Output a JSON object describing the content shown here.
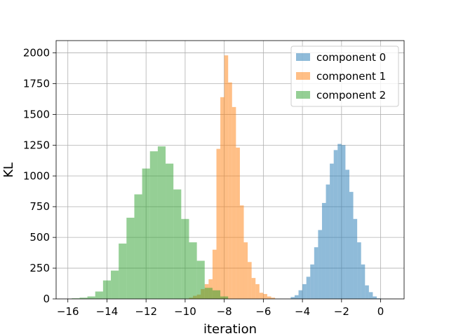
{
  "chart_data": {
    "type": "bar",
    "xlabel": "iteration",
    "ylabel": "KL",
    "xlim": [
      -16.6,
      1.2
    ],
    "ylim": [
      0,
      2100
    ],
    "grid": true,
    "legend_position": "top-right",
    "xticks": [
      -16,
      -14,
      -12,
      -10,
      -8,
      -6,
      -4,
      -2,
      0
    ],
    "yticks": [
      0,
      250,
      500,
      750,
      1000,
      1250,
      1500,
      1750,
      2000
    ],
    "series": [
      {
        "name": "component 0",
        "color": "#1f77b4",
        "opacity": 0.5,
        "bin_width": 0.2,
        "bin_starts": [
          -4.6,
          -4.4,
          -4.2,
          -4.0,
          -3.8,
          -3.6,
          -3.4,
          -3.2,
          -3.0,
          -2.8,
          -2.6,
          -2.4,
          -2.2,
          -2.0,
          -1.8,
          -1.6,
          -1.4,
          -1.2,
          -1.0,
          -0.8,
          -0.6,
          -0.4,
          -0.2
        ],
        "values": [
          15,
          30,
          70,
          120,
          180,
          280,
          420,
          560,
          780,
          930,
          1100,
          1210,
          1260,
          1250,
          1050,
          870,
          650,
          460,
          280,
          110,
          55,
          20,
          5
        ]
      },
      {
        "name": "component 1",
        "color": "#ff7f0e",
        "opacity": 0.5,
        "bin_width": 0.2,
        "bin_starts": [
          -9.8,
          -9.6,
          -9.4,
          -9.2,
          -9.0,
          -8.8,
          -8.6,
          -8.4,
          -8.2,
          -8.0,
          -7.8,
          -7.6,
          -7.4,
          -7.2,
          -7.0,
          -6.8,
          -6.6,
          -6.4,
          -6.2,
          -6.0,
          -5.8,
          -5.6
        ],
        "values": [
          10,
          25,
          35,
          80,
          120,
          160,
          400,
          1220,
          1640,
          1980,
          1760,
          1560,
          1230,
          760,
          460,
          300,
          170,
          120,
          50,
          40,
          20,
          10
        ]
      },
      {
        "name": "component 2",
        "color": "#2ca02c",
        "opacity": 0.5,
        "bin_width": 0.4,
        "bin_starts": [
          -15.8,
          -15.4,
          -15.0,
          -14.6,
          -14.2,
          -13.8,
          -13.4,
          -13.0,
          -12.6,
          -12.2,
          -11.8,
          -11.4,
          -11.0,
          -10.6,
          -10.2,
          -9.8,
          -9.4,
          -9.0,
          -8.6,
          -8.2
        ],
        "values": [
          5,
          10,
          20,
          60,
          150,
          230,
          450,
          660,
          850,
          1060,
          1200,
          1240,
          1100,
          890,
          650,
          460,
          310,
          90,
          70,
          20
        ]
      }
    ]
  }
}
